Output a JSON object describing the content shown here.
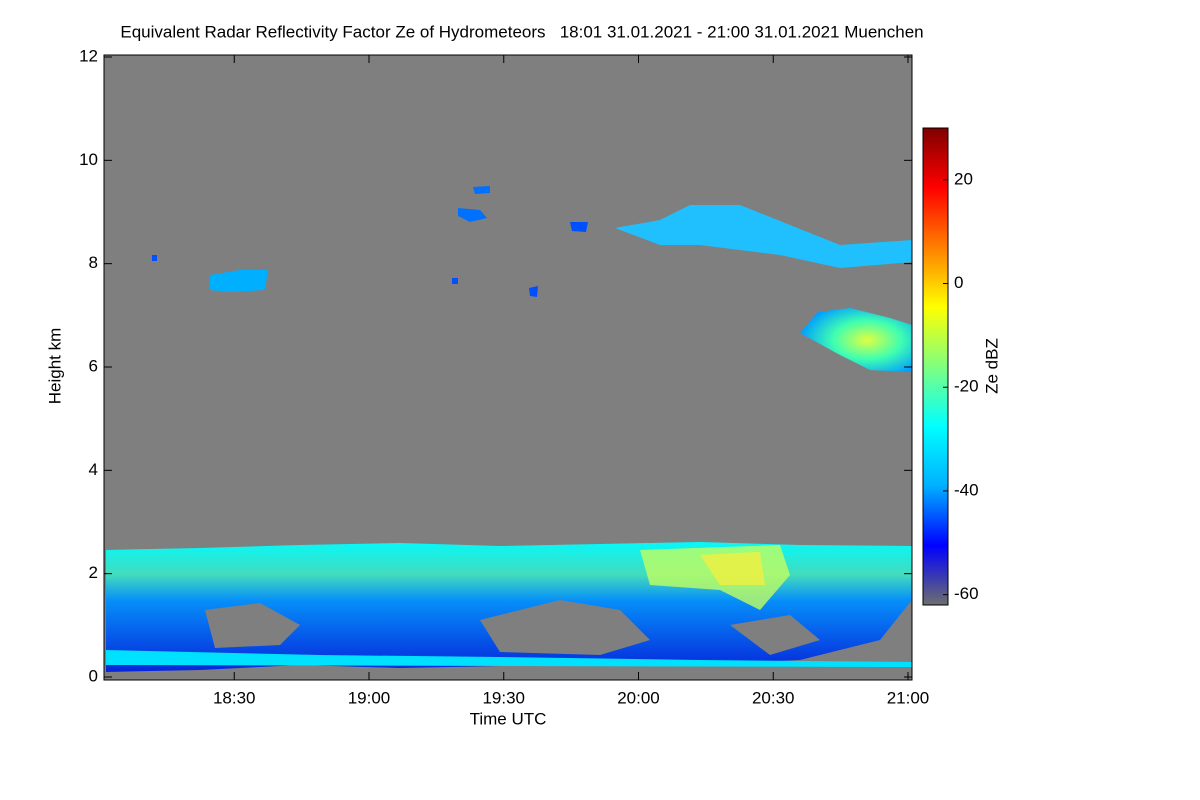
{
  "chart_data": {
    "type": "heatmap",
    "title": "Equivalent Radar Reflectivity Factor Ze of Hydrometeors   18:01 31.01.2021 - 21:00 31.01.2021 Muenchen",
    "xlabel": "Time UTC",
    "ylabel": "Height km",
    "colorbar_label": "Ze dBZ",
    "xlim": [
      1081,
      1260
    ],
    "xticks": [
      {
        "value": 1110,
        "label": "18:30"
      },
      {
        "value": 1140,
        "label": "19:00"
      },
      {
        "value": 1170,
        "label": "19:30"
      },
      {
        "value": 1200,
        "label": "20:00"
      },
      {
        "value": 1230,
        "label": "20:30"
      },
      {
        "value": 1260,
        "label": "21:00"
      }
    ],
    "ylim": [
      0,
      12
    ],
    "yticks": [
      0,
      2,
      4,
      6,
      8,
      10,
      12
    ],
    "zlim": [
      -62,
      30
    ],
    "zticks": [
      -60,
      -40,
      -20,
      0,
      20
    ],
    "colormap": [
      "#6e6e6e",
      "#0000ff",
      "#00b0ff",
      "#00ffff",
      "#7fff7f",
      "#ffff00",
      "#ff7f00",
      "#ff0000",
      "#800000"
    ],
    "background": "#7f7f7f"
  }
}
